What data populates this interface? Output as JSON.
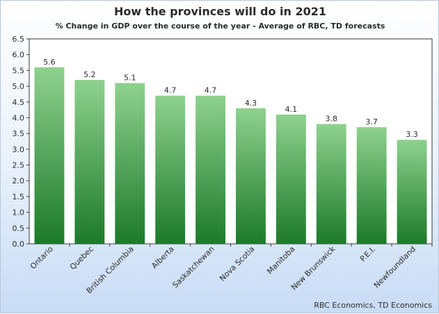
{
  "chart_data": {
    "type": "bar",
    "title": "How the provinces will do in 2021",
    "subtitle": "% Change in GDP over the course of the year - Average of RBC, TD forecasts",
    "xlabel": "",
    "ylabel": "",
    "categories": [
      "Ontario",
      "Quebec",
      "British Columbia",
      "Alberta",
      "Saskatchewan",
      "Nova Scotia",
      "Manitoba",
      "New Brunswick",
      "P.E.I.",
      "Newfoundland"
    ],
    "values": [
      5.6,
      5.2,
      5.1,
      4.7,
      4.7,
      4.3,
      4.1,
      3.8,
      3.7,
      3.3
    ],
    "data_labels": [
      "5.6",
      "5.2",
      "5.1",
      "4.7",
      "4.7",
      "4.3",
      "4.1",
      "3.8",
      "3.7",
      "3.3"
    ],
    "yticks": [
      "0.0",
      "0.5",
      "1.0",
      "1.5",
      "2.0",
      "2.5",
      "3.0",
      "3.5",
      "4.0",
      "4.5",
      "5.0",
      "5.5",
      "6.0",
      "6.5"
    ],
    "ylim": [
      0,
      6.5
    ],
    "grid": false,
    "legend": "none",
    "source": "RBC Economics, TD Economics",
    "colors": {
      "bar_top": "#8fd18f",
      "bar_bottom": "#1c7a2a",
      "plot_bg": "#ffffff",
      "background_bottom": "#c8dcf6"
    }
  }
}
